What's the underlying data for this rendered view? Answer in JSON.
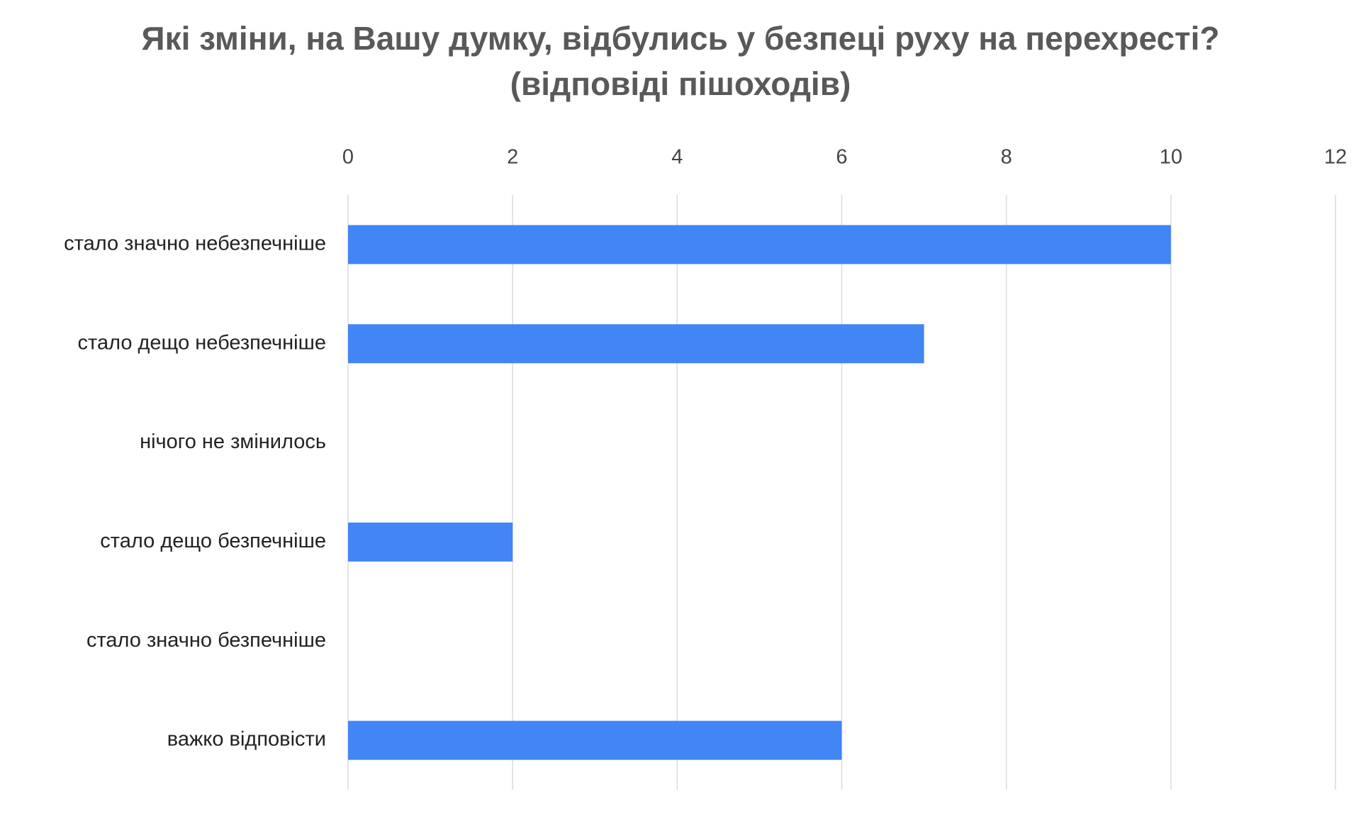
{
  "chart_data": {
    "type": "barh",
    "title": "Які зміни, на Вашу думку, відбулись у безпеці руху на перехресті? (відповіді пішоходів)",
    "categories": [
      "стало значно небезпечніше",
      "стало дещо небезпечніше",
      "нічого не змінилось",
      "стало дещо безпечніше",
      "стало значно безпечніше",
      "важко відповісти"
    ],
    "values": [
      10,
      7,
      0,
      2,
      0,
      6
    ],
    "color": "#4285f4",
    "xlim": [
      0,
      12
    ],
    "xticks": [
      0,
      2,
      4,
      6,
      8,
      10,
      12
    ],
    "grid": true
  }
}
